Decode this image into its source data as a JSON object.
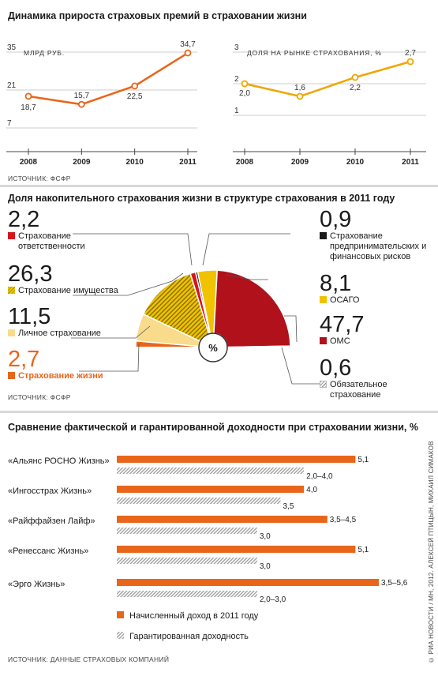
{
  "top": {
    "title": "Динамика прироста страховых премий в страховании жизни",
    "source": "ИСТОЧНИК: ФСФР"
  },
  "middle": {
    "title": "Доля накопительного страхования жизни в структуре страхования  в 2011 году",
    "source": "ИСТОЧНИК: ФСФР",
    "center_label": "%"
  },
  "bottom": {
    "title": "Сравнение фактической и гарантированной доходности при страховании жизни, %",
    "source": "ИСТОЧНИК: ДАННЫЕ СТРАХОВЫХ КОМПАНИЙ"
  },
  "credit": "© РИА НОВОСТИ / МН, 2012. АЛЕКСЕЙ ПТИЦЫН, МИХАИЛ СИМАКОВ",
  "colors": {
    "orange": "#e8651a",
    "yellow": "#f0c200",
    "light_yellow": "#f8dc8c",
    "dark_red": "#b0111a",
    "red": "#d7141e",
    "black": "#1a1a1a",
    "grey_hatch": "#9a9a9a"
  },
  "chart_data": [
    {
      "type": "line",
      "ylabel": "МЛРД РУБ.",
      "x": [
        "2008",
        "2009",
        "2010",
        "2011"
      ],
      "series": [
        {
          "values": [
            18.7,
            15.7,
            22.5,
            34.7
          ]
        }
      ],
      "value_labels": [
        "18,7",
        "15,7",
        "22,5",
        "34,7"
      ],
      "yticks": [
        "7",
        "21",
        "35"
      ],
      "ylim": [
        7,
        35
      ],
      "color": "#e8651a"
    },
    {
      "type": "line",
      "ylabel": "ДОЛЯ НА РЫНКЕ СТРАХОВАНИЯ, %",
      "x": [
        "2008",
        "2009",
        "2010",
        "2011"
      ],
      "series": [
        {
          "values": [
            2.0,
            1.6,
            2.2,
            2.7
          ]
        }
      ],
      "value_labels": [
        "2,0",
        "1,6",
        "2,2",
        "2,7"
      ],
      "yticks": [
        "1",
        "2",
        "3"
      ],
      "ylim": [
        0.6,
        3.0
      ],
      "color": "#f0a500"
    },
    {
      "type": "pie",
      "shape": "half-donut",
      "slices": [
        {
          "name": "Страхование жизни",
          "value": 2.7,
          "label": "2,7",
          "color": "#e8651a",
          "pattern": "solid"
        },
        {
          "name": "Личное страхование",
          "value": 11.5,
          "label": "11,5",
          "color": "#f8dc8c",
          "pattern": "solid"
        },
        {
          "name": "Страхование имущества",
          "value": 26.3,
          "label": "26,3",
          "color": "#f0c200",
          "pattern": "hatch"
        },
        {
          "name": "Страхование ответственности",
          "value": 2.2,
          "label": "2,2",
          "color": "#d7141e",
          "pattern": "solid"
        },
        {
          "name": "Страхование предпринимательских и финансовых рисков",
          "value": 0.9,
          "label": "0,9",
          "color": "#1a1a1a",
          "pattern": "solid"
        },
        {
          "name": "ОСАГО",
          "value": 8.1,
          "label": "8,1",
          "color": "#f0c200",
          "pattern": "solid"
        },
        {
          "name": "ОМС",
          "value": 47.7,
          "label": "47,7",
          "color": "#b0111a",
          "pattern": "solid"
        },
        {
          "name": "Обязательное страхование",
          "value": 0.6,
          "label": "0,6",
          "color": "#9a9a9a",
          "pattern": "hatch"
        }
      ]
    },
    {
      "type": "bar",
      "orientation": "horizontal",
      "categories": [
        "«Альянс РОСНО Жизнь»",
        "«Ингосстрах Жизнь»",
        "«Райффайзен Лайф»",
        "«Ренессанс Жизнь»",
        "«Эрго Жизнь»"
      ],
      "series": [
        {
          "name": "Начисленный доход в 2011 году",
          "values": [
            5.1,
            4.0,
            4.5,
            5.1,
            5.6
          ],
          "labels": [
            "5,1",
            "4,0",
            "3,5–4,5",
            "5,1",
            "3,5–5,6"
          ],
          "color": "#e8651a",
          "pattern": "solid"
        },
        {
          "name": "Гарантированная доходность",
          "values": [
            4.0,
            3.5,
            3.0,
            3.0,
            3.0
          ],
          "labels": [
            "2,0–4,0",
            "3,5",
            "3,0",
            "3,0",
            "2,0–3,0"
          ],
          "color": "#9a9a9a",
          "pattern": "hatch"
        }
      ],
      "xlim": [
        0,
        5.6
      ]
    }
  ]
}
